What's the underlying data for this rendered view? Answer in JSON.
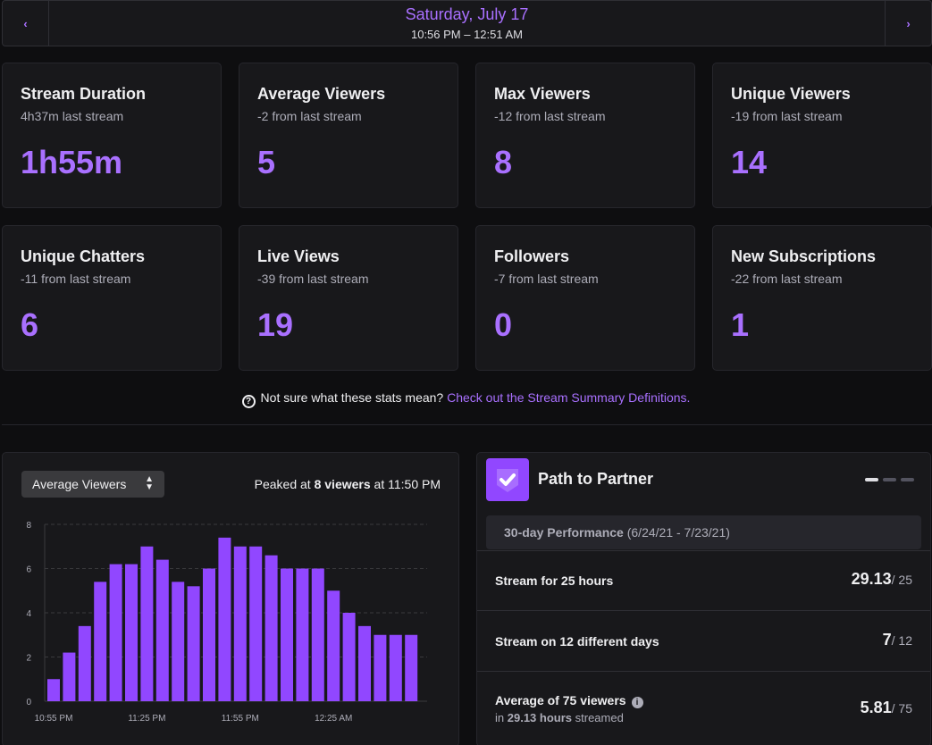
{
  "header": {
    "date": "Saturday, July 17",
    "time_range": "10:56 PM – 12:51 AM",
    "prev_icon": "chevron-left-icon",
    "next_icon": "chevron-right-icon"
  },
  "stats": [
    {
      "title": "Stream Duration",
      "sub": "4h37m last stream",
      "value": "1h55m"
    },
    {
      "title": "Average Viewers",
      "sub": "-2 from last stream",
      "value": "5"
    },
    {
      "title": "Max Viewers",
      "sub": "-12 from last stream",
      "value": "8"
    },
    {
      "title": "Unique Viewers",
      "sub": "-19 from last stream",
      "value": "14"
    },
    {
      "title": "Unique Chatters",
      "sub": "-11 from last stream",
      "value": "6"
    },
    {
      "title": "Live Views",
      "sub": "-39 from last stream",
      "value": "19"
    },
    {
      "title": "Followers",
      "sub": "-7 from last stream",
      "value": "0"
    },
    {
      "title": "New Subscriptions",
      "sub": "-22 from last stream",
      "value": "1"
    }
  ],
  "help": {
    "text": "Not sure what these stats mean?",
    "link": "Check out the Stream Summary Definitions.",
    "icon": "?"
  },
  "chart_panel": {
    "select_value": "Average Viewers",
    "peak_prefix": "Peaked at",
    "peak_value": "8 viewers",
    "peak_suffix": "at 11:50 PM"
  },
  "chart_data": {
    "type": "bar",
    "ylim": [
      0,
      8
    ],
    "yticks": [
      "0",
      "2",
      "4",
      "6",
      "8"
    ],
    "xtick_labels": [
      "10:55 PM",
      "11:25 PM",
      "11:55 PM",
      "12:25 AM"
    ],
    "values": [
      1,
      2.2,
      3.4,
      5.4,
      6.2,
      6.2,
      7.0,
      6.4,
      5.4,
      5.2,
      6.0,
      7.4,
      7.0,
      7.0,
      6.6,
      6.0,
      6.0,
      6.0,
      5.0,
      4.0,
      3.4,
      3.0,
      3.0,
      3.0
    ],
    "grid": true,
    "color": "#9147ff"
  },
  "partner": {
    "title": "Path to Partner",
    "badge_icon": "checkmark-shield-icon",
    "perf_label": "30-day Performance",
    "perf_range": "(6/24/21 - 7/23/21)",
    "goals": [
      {
        "label": "Stream for 25 hours",
        "sub_pre": "",
        "sub_bold": "",
        "sub_post": "",
        "value": "29.13",
        "target": "/ 25",
        "info": false
      },
      {
        "label": "Stream on 12 different days",
        "sub_pre": "",
        "sub_bold": "",
        "sub_post": "",
        "value": "7",
        "target": "/ 12",
        "info": false
      },
      {
        "label": "Average of 75 viewers",
        "sub_pre": "in",
        "sub_bold": "29.13 hours",
        "sub_post": "streamed",
        "value": "5.81",
        "target": "/ 75",
        "info": true
      }
    ]
  },
  "colors": {
    "accent": "#a970ff",
    "bar": "#9147ff",
    "card_bg": "#18181b",
    "page_bg": "#0e0e10"
  }
}
